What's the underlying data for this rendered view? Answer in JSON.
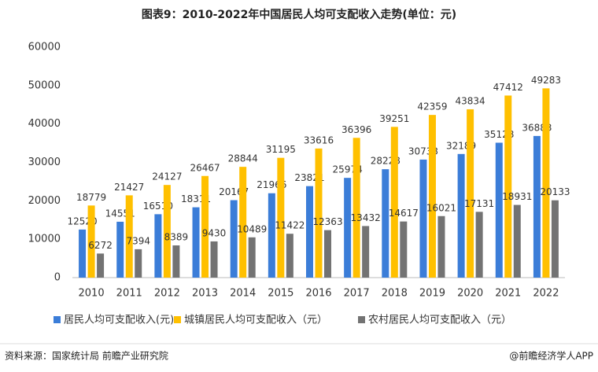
{
  "chart_data": {
    "type": "bar",
    "title": "图表9：2010-2022年中国居民人均可支配收入走势(单位：元)",
    "categories": [
      "2010",
      "2011",
      "2012",
      "2013",
      "2014",
      "2015",
      "2016",
      "2017",
      "2018",
      "2019",
      "2020",
      "2021",
      "2022"
    ],
    "series": [
      {
        "name": "居民人均可支配收入(元)",
        "color": "#3b7dd8",
        "values": [
          12520,
          14551,
          16510,
          18311,
          20167,
          21966,
          23821,
          25974,
          28228,
          30733,
          32189,
          35128,
          36883
        ]
      },
      {
        "name": "城镇居民人均可支配收入（元）",
        "color": "#ffc000",
        "values": [
          18779,
          21427,
          24127,
          26467,
          28844,
          31195,
          33616,
          36396,
          39251,
          42359,
          43834,
          47412,
          49283
        ]
      },
      {
        "name": "农村居民人均可支配收入（元）",
        "color": "#737373",
        "values": [
          6272,
          7394,
          8389,
          9430,
          10489,
          11422,
          12363,
          13432,
          14617,
          16021,
          17131,
          18931,
          20133
        ]
      }
    ],
    "ylim": [
      0,
      60000
    ],
    "yticks": [
      0,
      10000,
      20000,
      30000,
      40000,
      50000,
      60000
    ],
    "grid": false,
    "source": "资料来源：国家统计局 前瞻产业研究院",
    "credit": "@前瞻经济学人APP"
  }
}
